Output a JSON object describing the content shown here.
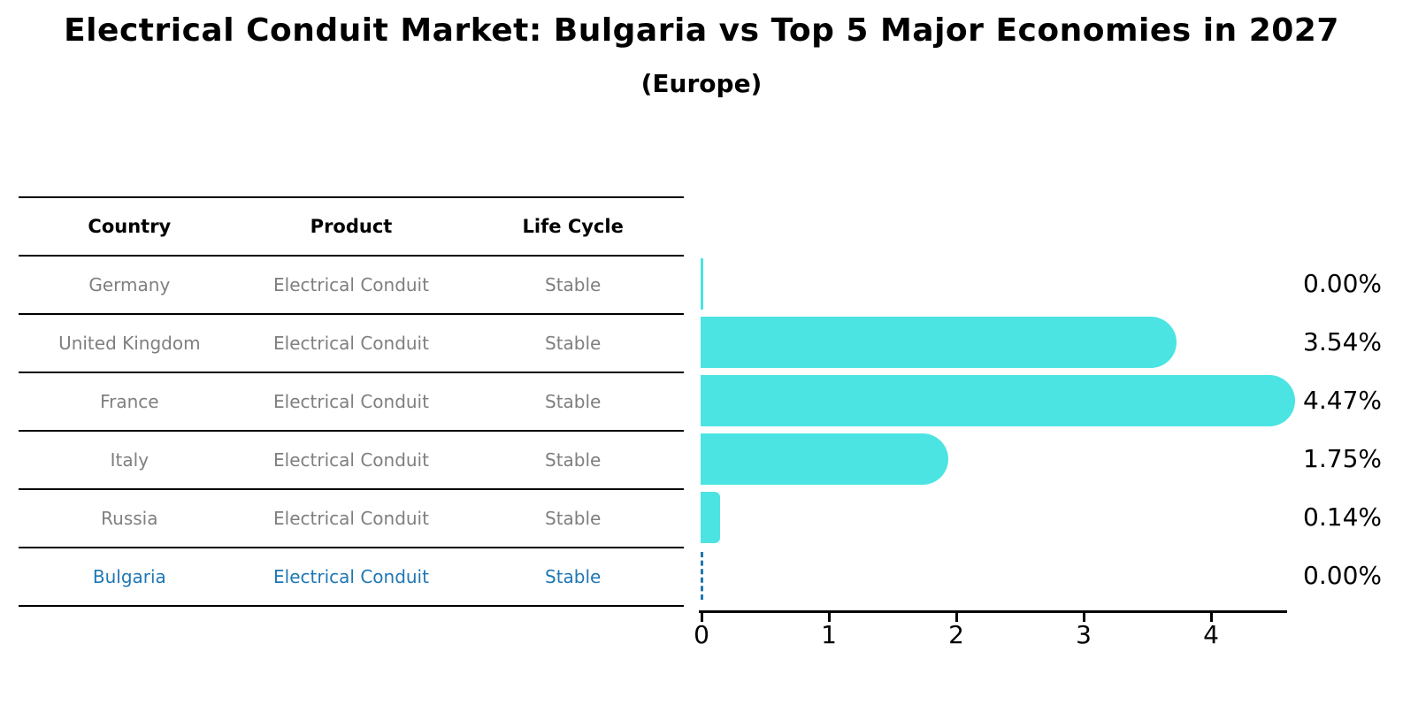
{
  "title": "Electrical Conduit Market: Bulgaria vs Top 5 Major Economies in 2027",
  "subtitle": "(Europe)",
  "colors": {
    "bar": "#4be4e2",
    "highlight_blue": "#1f77b4",
    "table_text_gray": "#7f7f7f",
    "text_black": "#000000"
  },
  "table": {
    "headers": [
      "Country",
      "Product",
      "Life Cycle"
    ],
    "rows": [
      {
        "country": "Germany",
        "product": "Electrical Conduit",
        "life_cycle": "Stable",
        "highlight": false
      },
      {
        "country": "United Kingdom",
        "product": "Electrical Conduit",
        "life_cycle": "Stable",
        "highlight": false
      },
      {
        "country": "France",
        "product": "Electrical Conduit",
        "life_cycle": "Stable",
        "highlight": false
      },
      {
        "country": "Italy",
        "product": "Electrical Conduit",
        "life_cycle": "Stable",
        "highlight": false
      },
      {
        "country": "Russia",
        "product": "Electrical Conduit",
        "life_cycle": "Stable",
        "highlight": false
      },
      {
        "country": "Bulgaria",
        "product": "Electrical Conduit",
        "life_cycle": "Stable",
        "highlight": true
      }
    ]
  },
  "chart_data": {
    "type": "bar",
    "orientation": "horizontal",
    "title": "Electrical Conduit Market: Bulgaria vs Top 5 Major Economies in 2027 (Europe)",
    "categories": [
      "Germany",
      "United Kingdom",
      "France",
      "Italy",
      "Russia",
      "Bulgaria"
    ],
    "values": [
      0.0,
      3.54,
      4.47,
      1.75,
      0.14,
      0.0
    ],
    "value_labels": [
      "0.00%",
      "3.54%",
      "4.47%",
      "1.75%",
      "0.14%",
      "0.00%"
    ],
    "xlabel": "",
    "ylabel": "",
    "xlim": [
      0,
      4.6
    ],
    "x_ticks": [
      0,
      1,
      2,
      3,
      4
    ],
    "bar_color": "#4be4e2",
    "bar_style": "rounded-right-cap",
    "highlight_category": "Bulgaria",
    "highlight_marker": "dashed-vertical-line-at-zero",
    "grid": false,
    "legend_position": "none"
  }
}
